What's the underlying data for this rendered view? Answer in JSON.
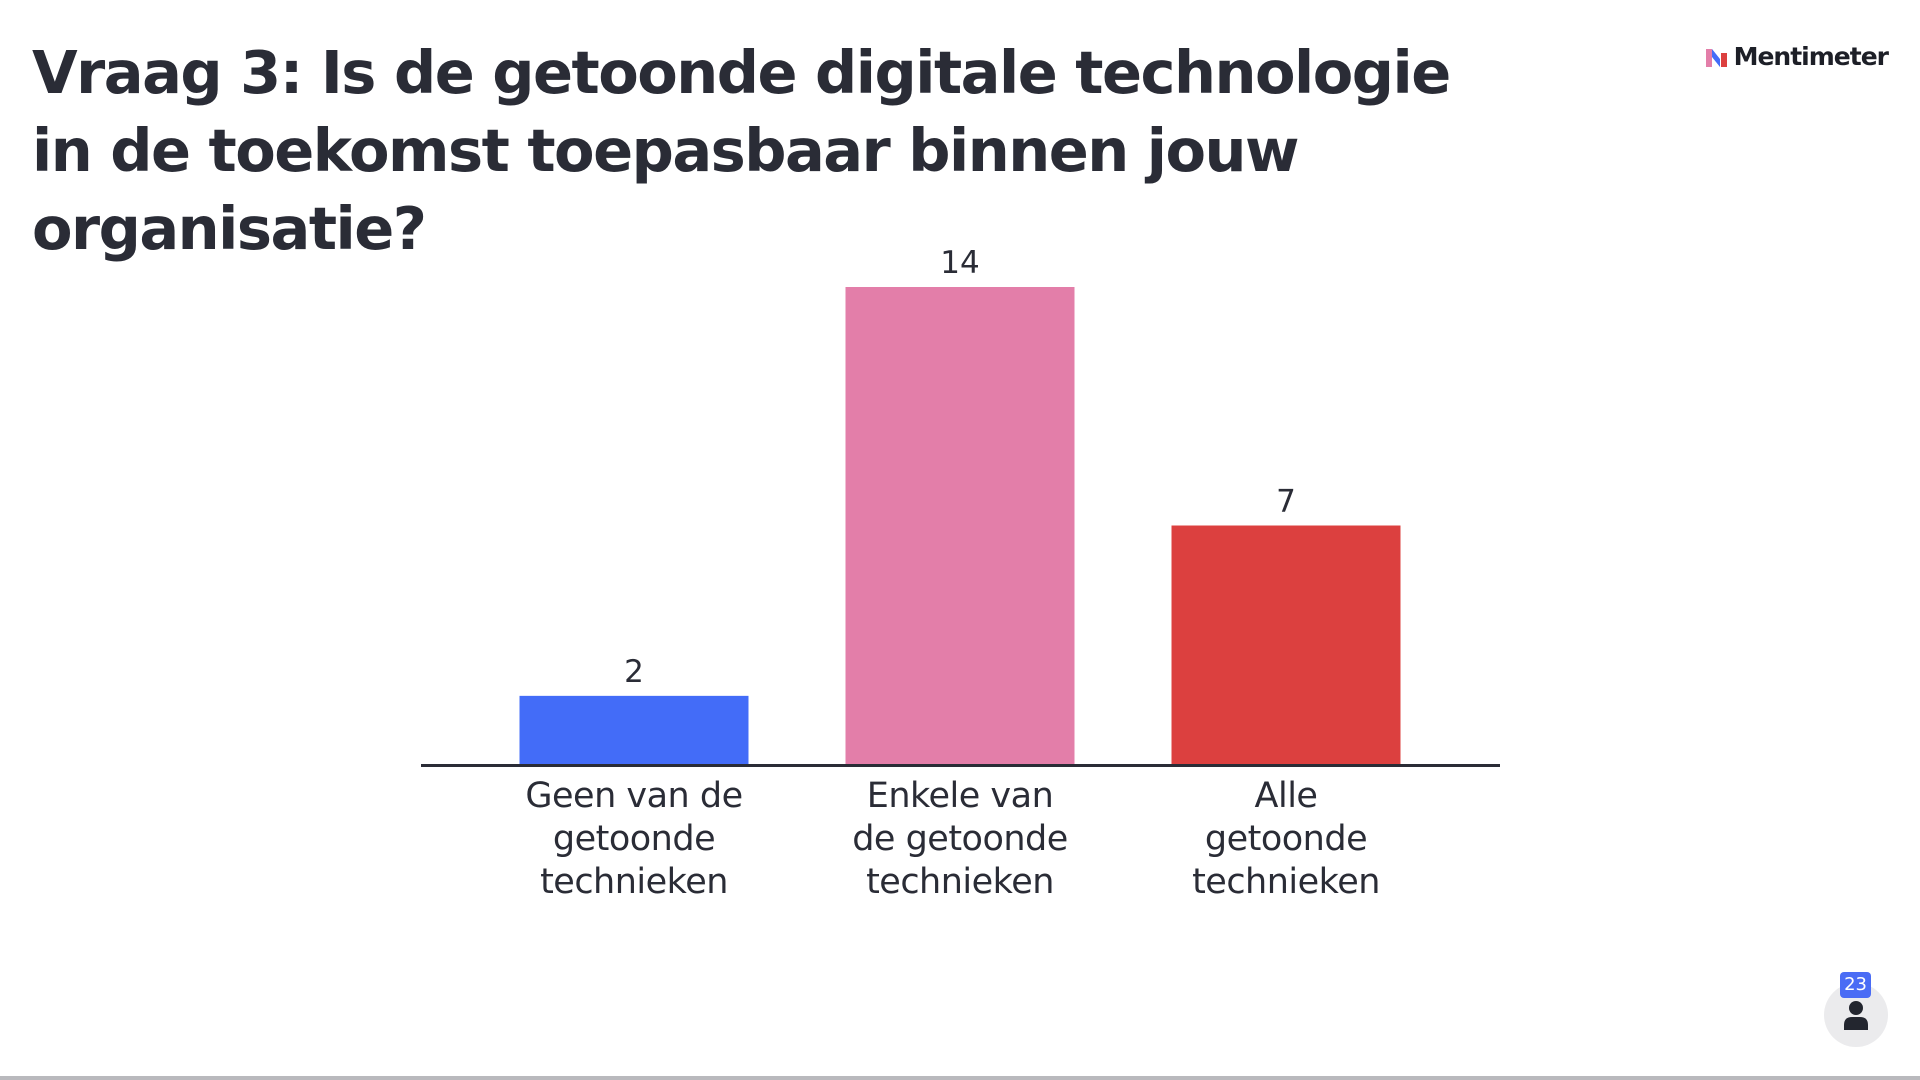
{
  "slide": {
    "title": "Vraag 3: Is de getoonde digitale technologie in de toekomst toepasbaar binnen jouw organisatie?"
  },
  "brand": {
    "name": "Mentimeter",
    "icon": "mentimeter-logo-icon"
  },
  "participants": {
    "count": "23",
    "icon": "person-icon"
  },
  "chart_data": {
    "type": "bar",
    "categories": [
      [
        "Geen van de",
        "getoonde",
        "technieken"
      ],
      [
        "Enkele van",
        "de getoonde",
        "technieken"
      ],
      [
        "Alle",
        "getoonde",
        "technieken"
      ]
    ],
    "values": [
      2,
      14,
      7
    ],
    "colors": [
      "#436cf8",
      "#e37ea9",
      "#dc403f"
    ],
    "axis_color": "#2a2c36",
    "ylim": [
      0,
      14
    ],
    "grid": false
  }
}
